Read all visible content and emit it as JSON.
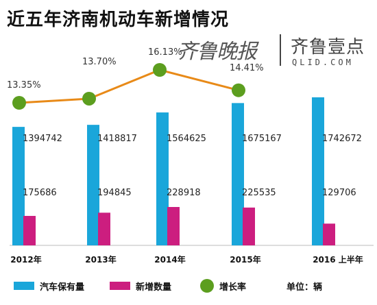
{
  "title": "近五年济南机动车新增情况",
  "logos": {
    "left": "齐鲁晚报",
    "right": "齐鲁壹点",
    "right_sub": "QLID.COM"
  },
  "unit_label": "单位：辆",
  "colors": {
    "vehicles": "#1aa6da",
    "new": "#cc1e7f",
    "rate_line": "#e88a18",
    "rate_dot": "#5c9e1f"
  },
  "legend": [
    {
      "label": "汽车保有量",
      "marker": "bar",
      "color": "#1aa6da"
    },
    {
      "label": "新增数量",
      "marker": "bar",
      "color": "#cc1e7f"
    },
    {
      "label": "增长率",
      "marker": "dot",
      "color": "#5c9e1f"
    }
  ],
  "chart_data": {
    "type": "bar",
    "title": "近五年济南机动车新增情况",
    "categories": [
      "2012年",
      "2013年",
      "2014年",
      "2015年",
      "2016 上半年"
    ],
    "series": [
      {
        "name": "汽车保有量",
        "values": [
          1394742,
          1418817,
          1564625,
          1675167,
          1742672
        ],
        "labels": [
          "1394742",
          "1418817",
          "1564625",
          "1675167",
          "1742672"
        ]
      },
      {
        "name": "新增数量",
        "values": [
          175686,
          194845,
          228918,
          225535,
          129706
        ],
        "labels": [
          "175686",
          "194845",
          "228918",
          "225535",
          "129706"
        ]
      },
      {
        "name": "增长率",
        "type": "line",
        "values": [
          13.35,
          13.7,
          16.13,
          14.41,
          null
        ],
        "labels": [
          "13.35%",
          "13.70%",
          "16.13%",
          "14.41%",
          ""
        ]
      }
    ],
    "unit": "单位：辆",
    "grid": false,
    "legend_position": "bottom"
  }
}
